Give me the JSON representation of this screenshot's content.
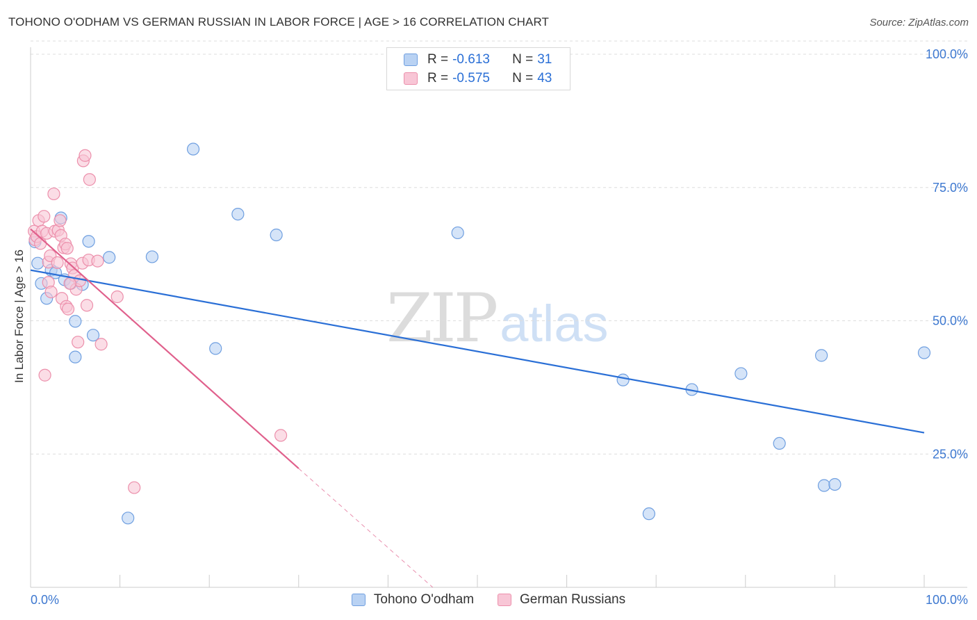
{
  "title": "TOHONO O'ODHAM VS GERMAN RUSSIAN IN LABOR FORCE | AGE > 16 CORRELATION CHART",
  "source": "Source: ZipAtlas.com",
  "watermark": {
    "zip": "ZIP",
    "atlas": "atlas"
  },
  "colors": {
    "blue_fill": "#b9d2f3",
    "blue_stroke": "#6f9fe0",
    "blue_line": "#2a6fd6",
    "pink_fill": "#f8c6d6",
    "pink_stroke": "#ec8fab",
    "pink_line": "#e0608c",
    "grid": "#dddddd",
    "tick_text": "#3d78d0"
  },
  "legend": {
    "rows": [
      {
        "series": "Tohono O'odham",
        "r_label": "R =",
        "r_value": "-0.613",
        "n_label": "N =",
        "n_value": "31"
      },
      {
        "series": "German Russians",
        "r_label": "R =",
        "r_value": "-0.575",
        "n_label": "N =",
        "n_value": "43"
      }
    ]
  },
  "chart_data": {
    "type": "scatter",
    "title": "TOHONO O'ODHAM VS GERMAN RUSSIAN IN LABOR FORCE | AGE > 16 CORRELATION CHART",
    "xlabel": "",
    "ylabel": "In Labor Force | Age > 16",
    "xlim": [
      0,
      100
    ],
    "ylim": [
      0,
      100
    ],
    "x_tick_labels": [
      "0.0%",
      "100.0%"
    ],
    "y_tick_values": [
      25,
      50,
      75,
      100
    ],
    "y_tick_labels": [
      "25.0%",
      "50.0%",
      "75.0%",
      "100.0%"
    ],
    "grid": true,
    "legend_position": "top-center",
    "series": [
      {
        "name": "Tohono O'odham",
        "color": "blue",
        "points": [
          [
            0.8,
            60.8
          ],
          [
            1.2,
            57.0
          ],
          [
            1.8,
            54.2
          ],
          [
            2.3,
            59.5
          ],
          [
            2.8,
            59.0
          ],
          [
            3.4,
            69.3
          ],
          [
            3.8,
            57.7
          ],
          [
            4.5,
            57.0
          ],
          [
            5.0,
            49.9
          ],
          [
            5.0,
            43.2
          ],
          [
            5.8,
            56.8
          ],
          [
            6.5,
            64.9
          ],
          [
            7.0,
            47.3
          ],
          [
            8.8,
            61.9
          ],
          [
            10.9,
            13.0
          ],
          [
            13.6,
            62.0
          ],
          [
            18.2,
            82.2
          ],
          [
            20.7,
            44.8
          ],
          [
            23.2,
            70.0
          ],
          [
            27.5,
            66.1
          ],
          [
            47.8,
            66.5
          ],
          [
            66.3,
            38.9
          ],
          [
            69.2,
            13.8
          ],
          [
            74.0,
            37.1
          ],
          [
            79.5,
            40.1
          ],
          [
            83.8,
            27.0
          ],
          [
            88.5,
            43.5
          ],
          [
            88.8,
            19.1
          ],
          [
            90.0,
            19.3
          ],
          [
            100.0,
            44.0
          ],
          [
            0.5,
            64.8
          ]
        ],
        "trend": {
          "x1": 0.0,
          "y1": 59.5,
          "x2": 100.0,
          "y2": 29.0
        }
      },
      {
        "name": "German Russians",
        "color": "pink",
        "points": [
          [
            0.4,
            66.8
          ],
          [
            0.5,
            65.2
          ],
          [
            0.7,
            65.8
          ],
          [
            0.9,
            68.8
          ],
          [
            1.1,
            64.5
          ],
          [
            1.3,
            66.8
          ],
          [
            1.5,
            69.6
          ],
          [
            1.8,
            66.4
          ],
          [
            2.0,
            61.0
          ],
          [
            2.0,
            57.2
          ],
          [
            2.2,
            62.2
          ],
          [
            2.3,
            55.4
          ],
          [
            2.7,
            66.8
          ],
          [
            3.0,
            60.9
          ],
          [
            3.1,
            67.0
          ],
          [
            3.3,
            68.8
          ],
          [
            3.4,
            66.0
          ],
          [
            3.5,
            54.2
          ],
          [
            3.7,
            63.7
          ],
          [
            3.9,
            64.4
          ],
          [
            4.0,
            52.7
          ],
          [
            4.1,
            63.6
          ],
          [
            4.2,
            52.2
          ],
          [
            4.5,
            60.7
          ],
          [
            4.7,
            59.9
          ],
          [
            4.9,
            58.5
          ],
          [
            5.1,
            55.9
          ],
          [
            5.3,
            46.0
          ],
          [
            5.5,
            57.5
          ],
          [
            5.8,
            60.8
          ],
          [
            5.9,
            80.0
          ],
          [
            6.1,
            81.0
          ],
          [
            6.3,
            52.9
          ],
          [
            6.5,
            61.4
          ],
          [
            6.6,
            76.5
          ],
          [
            7.5,
            61.2
          ],
          [
            7.9,
            45.6
          ],
          [
            9.7,
            54.5
          ],
          [
            11.6,
            18.7
          ],
          [
            28.0,
            28.5
          ],
          [
            1.6,
            39.8
          ],
          [
            2.6,
            73.8
          ],
          [
            4.4,
            57.0
          ]
        ],
        "trend": {
          "x1": 0.0,
          "y1": 67.2,
          "x2": 30.0,
          "y2": 22.3
        },
        "trend_dashed_extension": {
          "x1": 30.0,
          "y1": 22.3,
          "x2": 45.0,
          "y2": 0.0
        }
      }
    ]
  }
}
